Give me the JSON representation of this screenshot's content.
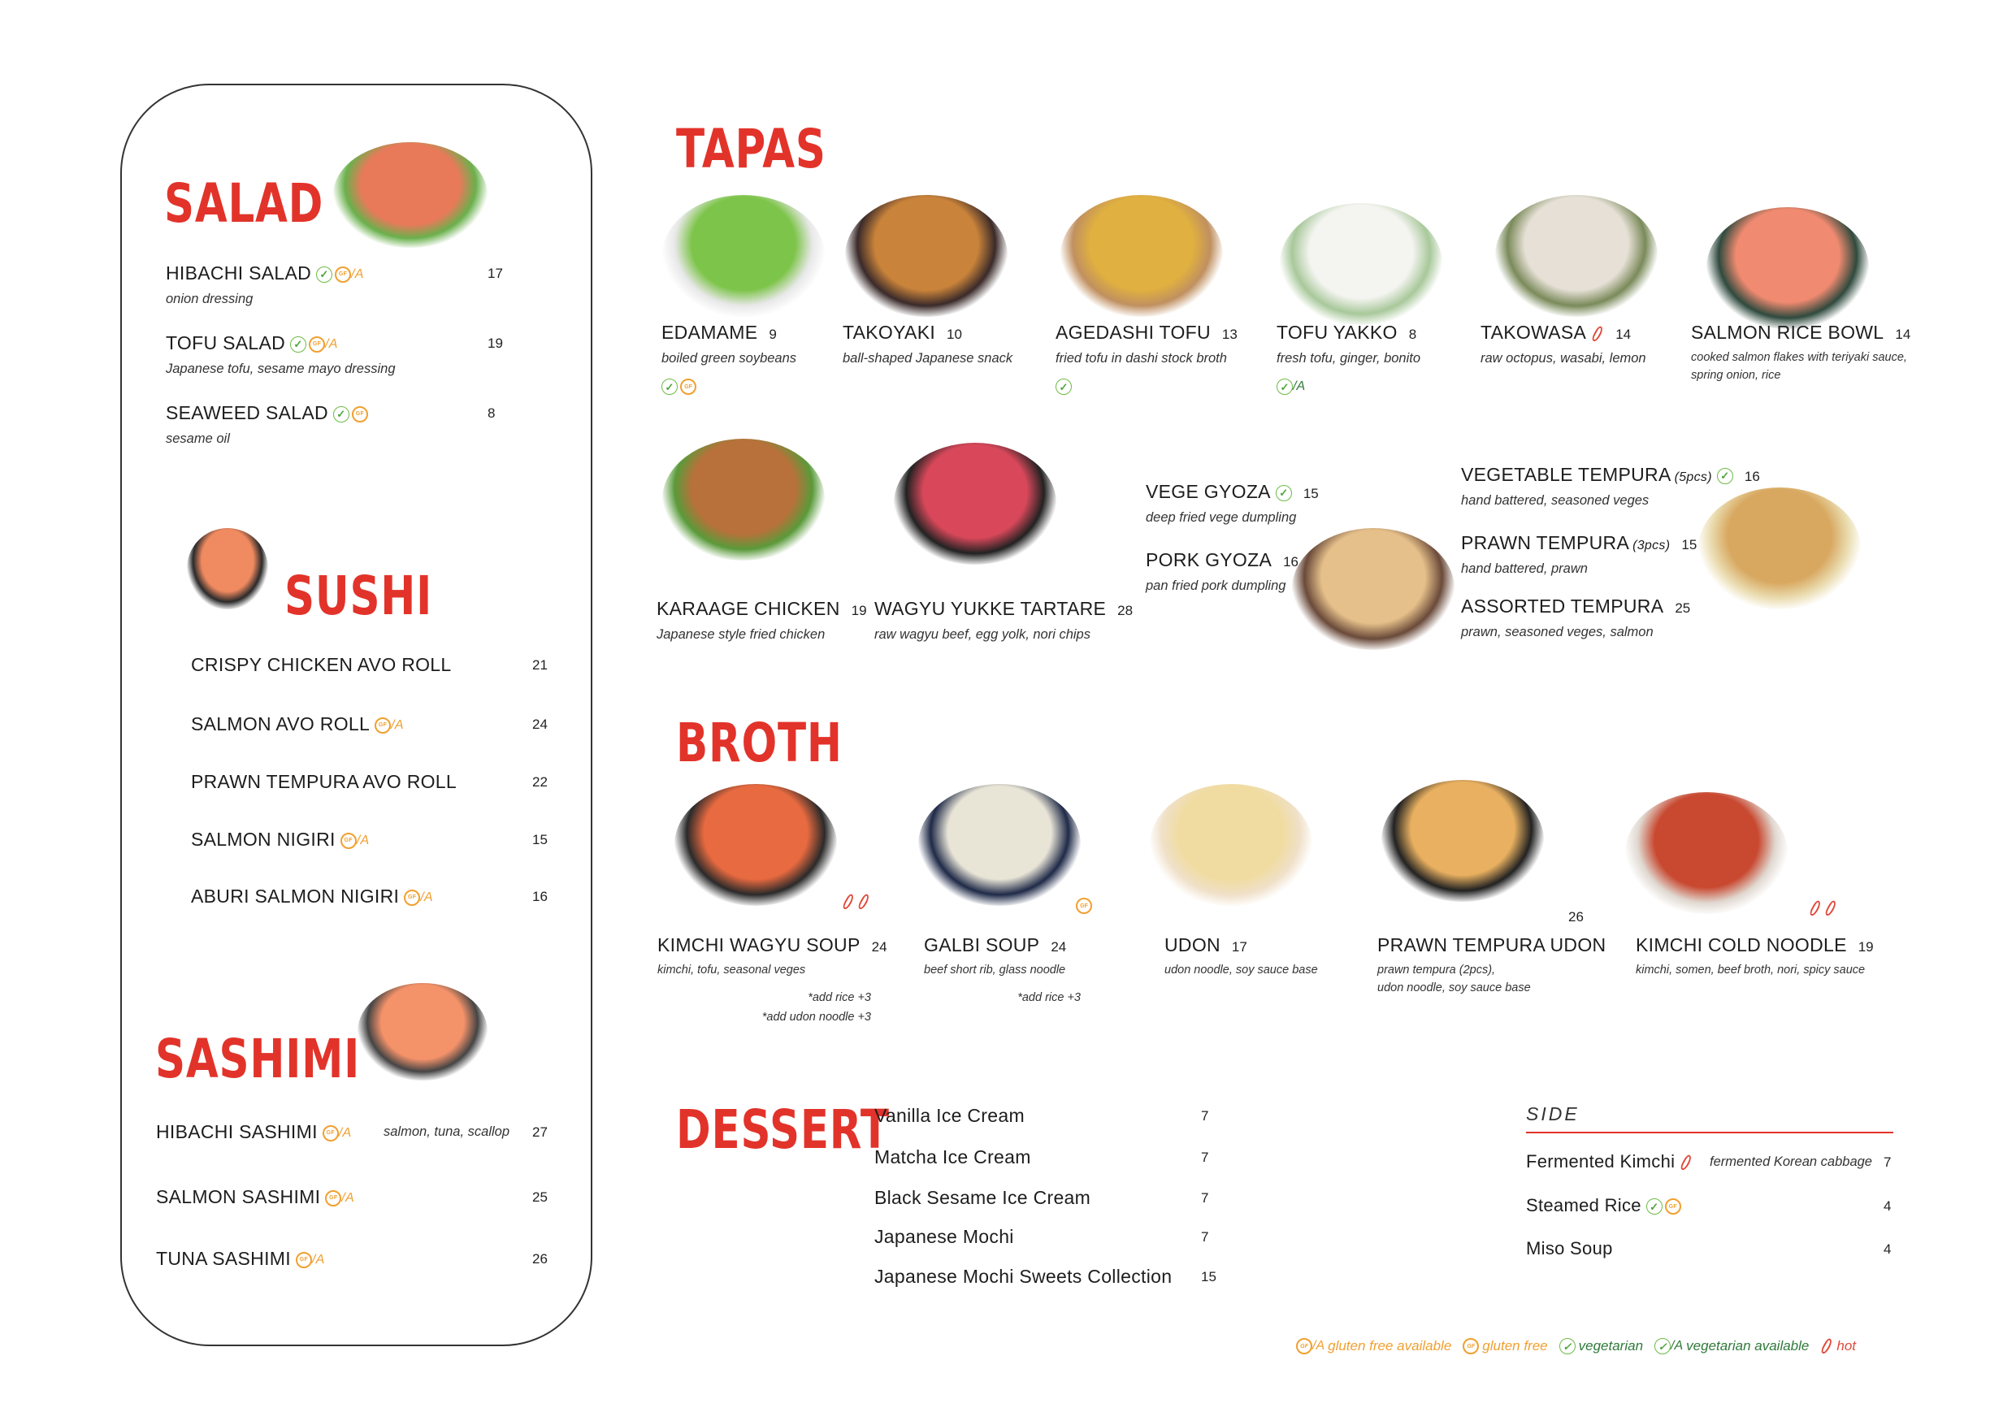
{
  "colors": {
    "title_red": "#e2332a",
    "vegetarian_green": "#6dbb45",
    "gluten_free_orange": "#f0a030",
    "hot_red": "#e04a3a"
  },
  "salad": {
    "title": "SALAD",
    "items": [
      {
        "name": "HIBACHI SALAD",
        "icons": [
          "vegetarian",
          "gluten-free-available"
        ],
        "price": "17",
        "desc": "onion dressing"
      },
      {
        "name": "TOFU SALAD",
        "icons": [
          "vegetarian",
          "gluten-free-available"
        ],
        "price": "19",
        "desc": "Japanese tofu, sesame mayo dressing"
      },
      {
        "name": "SEAWEED SALAD",
        "icons": [
          "vegetarian",
          "gluten-free"
        ],
        "price": "8",
        "desc": "sesame oil"
      }
    ]
  },
  "sushi": {
    "title": "SUSHI",
    "items": [
      {
        "name": "CRISPY CHICKEN AVO ROLL",
        "icons": [],
        "price": "21"
      },
      {
        "name": "SALMON AVO ROLL",
        "icons": [
          "gluten-free-available"
        ],
        "price": "24"
      },
      {
        "name": "PRAWN TEMPURA AVO ROLL",
        "icons": [],
        "price": "22"
      },
      {
        "name": "SALMON NIGIRI",
        "icons": [
          "gluten-free-available"
        ],
        "price": "15"
      },
      {
        "name": "ABURI SALMON NIGIRI",
        "icons": [
          "gluten-free-available"
        ],
        "price": "16"
      }
    ]
  },
  "sashimi": {
    "title": "SASHIMI",
    "items": [
      {
        "name": "HIBACHI SASHIMI",
        "icons": [
          "gluten-free-available"
        ],
        "price": "27",
        "desc": "salmon, tuna, scallop"
      },
      {
        "name": "SALMON SASHIMI",
        "icons": [
          "gluten-free-available"
        ],
        "price": "25"
      },
      {
        "name": "TUNA SASHIMI",
        "icons": [
          "gluten-free-available"
        ],
        "price": "26"
      }
    ]
  },
  "tapas": {
    "title": "TAPAS",
    "items": [
      {
        "name": "EDAMAME",
        "price": "9",
        "desc": "boiled green soybeans",
        "icons": [
          "vegetarian",
          "gluten-free"
        ]
      },
      {
        "name": "TAKOYAKI",
        "price": "10",
        "desc": "ball-shaped Japanese snack",
        "icons": []
      },
      {
        "name": "AGEDASHI TOFU",
        "price": "13",
        "desc": "fried tofu in dashi stock broth",
        "icons": [
          "vegetarian"
        ]
      },
      {
        "name": "TOFU YAKKO",
        "price": "8",
        "desc": "fresh tofu, ginger, bonito",
        "icons": [
          "vegetarian-available"
        ]
      },
      {
        "name": "TAKOWASA",
        "price": "14",
        "desc": "raw octopus, wasabi, lemon",
        "icons": [
          "hot"
        ]
      },
      {
        "name": "SALMON RICE BOWL",
        "price": "14",
        "desc": "cooked salmon flakes with teriyaki sauce,",
        "desc2": "spring onion, rice",
        "icons": []
      },
      {
        "name": "KARAAGE CHICKEN",
        "price": "19",
        "desc": "Japanese style fried chicken",
        "icons": []
      },
      {
        "name": "WAGYU YUKKE TARTARE",
        "price": "28",
        "desc": "raw wagyu beef, egg yolk, nori chips",
        "icons": []
      },
      {
        "name": "VEGE GYOZA",
        "price": "15",
        "desc": "deep fried vege dumpling",
        "icons": [
          "vegetarian"
        ]
      },
      {
        "name": "PORK GYOZA",
        "price": "16",
        "desc": "pan fried pork dumpling",
        "icons": []
      },
      {
        "name": "VEGETABLE TEMPURA",
        "note": "(5pcs)",
        "price": "16",
        "desc": "hand battered, seasoned veges",
        "icons": [
          "vegetarian"
        ]
      },
      {
        "name": "PRAWN TEMPURA",
        "note": "(3pcs)",
        "price": "15",
        "desc": "hand battered, prawn",
        "icons": []
      },
      {
        "name": "ASSORTED TEMPURA",
        "price": "25",
        "desc": "prawn, seasoned veges, salmon",
        "icons": []
      }
    ]
  },
  "broth": {
    "title": "BROTH",
    "items": [
      {
        "name": "KIMCHI WAGYU SOUP",
        "price": "24",
        "desc": "kimchi, tofu, seasonal veges",
        "notes": [
          "*add rice +3",
          "*add udon noodle +3"
        ],
        "icons": [
          "hot",
          "hot"
        ]
      },
      {
        "name": "GALBI SOUP",
        "price": "24",
        "desc": "beef short rib, glass noodle",
        "notes": [
          "*add rice +3"
        ],
        "icons": [
          "gluten-free"
        ]
      },
      {
        "name": "UDON",
        "price": "17",
        "desc": "udon noodle, soy sauce base",
        "icons": []
      },
      {
        "name": "PRAWN TEMPURA UDON",
        "price": "26",
        "desc": "prawn tempura (2pcs),",
        "desc2": "udon noodle, soy sauce base",
        "icons": []
      },
      {
        "name": "KIMCHI COLD NOODLE",
        "price": "19",
        "desc": "kimchi, somen, beef broth, nori, spicy sauce",
        "icons": [
          "hot",
          "hot"
        ]
      }
    ]
  },
  "dessert": {
    "title": "DESSERT",
    "items": [
      {
        "name": "Vanilla Ice Cream",
        "price": "7"
      },
      {
        "name": "Matcha Ice Cream",
        "price": "7"
      },
      {
        "name": "Black Sesame Ice Cream",
        "price": "7"
      },
      {
        "name": "Japanese Mochi",
        "price": "7"
      },
      {
        "name": "Japanese Mochi Sweets Collection",
        "price": "15"
      }
    ]
  },
  "side": {
    "title": "SIDE",
    "items": [
      {
        "name": "Fermented Kimchi",
        "icons": [
          "hot"
        ],
        "desc": "fermented Korean cabbage",
        "price": "7"
      },
      {
        "name": "Steamed Rice",
        "icons": [
          "vegetarian",
          "gluten-free"
        ],
        "price": "4"
      },
      {
        "name": "Miso Soup",
        "icons": [],
        "price": "4"
      }
    ]
  },
  "legend": [
    {
      "icon": "gluten-free-available",
      "label": "gluten free available",
      "color": "o"
    },
    {
      "icon": "gluten-free",
      "label": "gluten free",
      "color": "o"
    },
    {
      "icon": "vegetarian",
      "label": "vegetarian",
      "color": "g"
    },
    {
      "icon": "vegetarian-available",
      "label": "vegetarian available",
      "color": "g"
    },
    {
      "icon": "hot",
      "label": "hot",
      "color": "r"
    }
  ],
  "icon_suffix": "/A"
}
